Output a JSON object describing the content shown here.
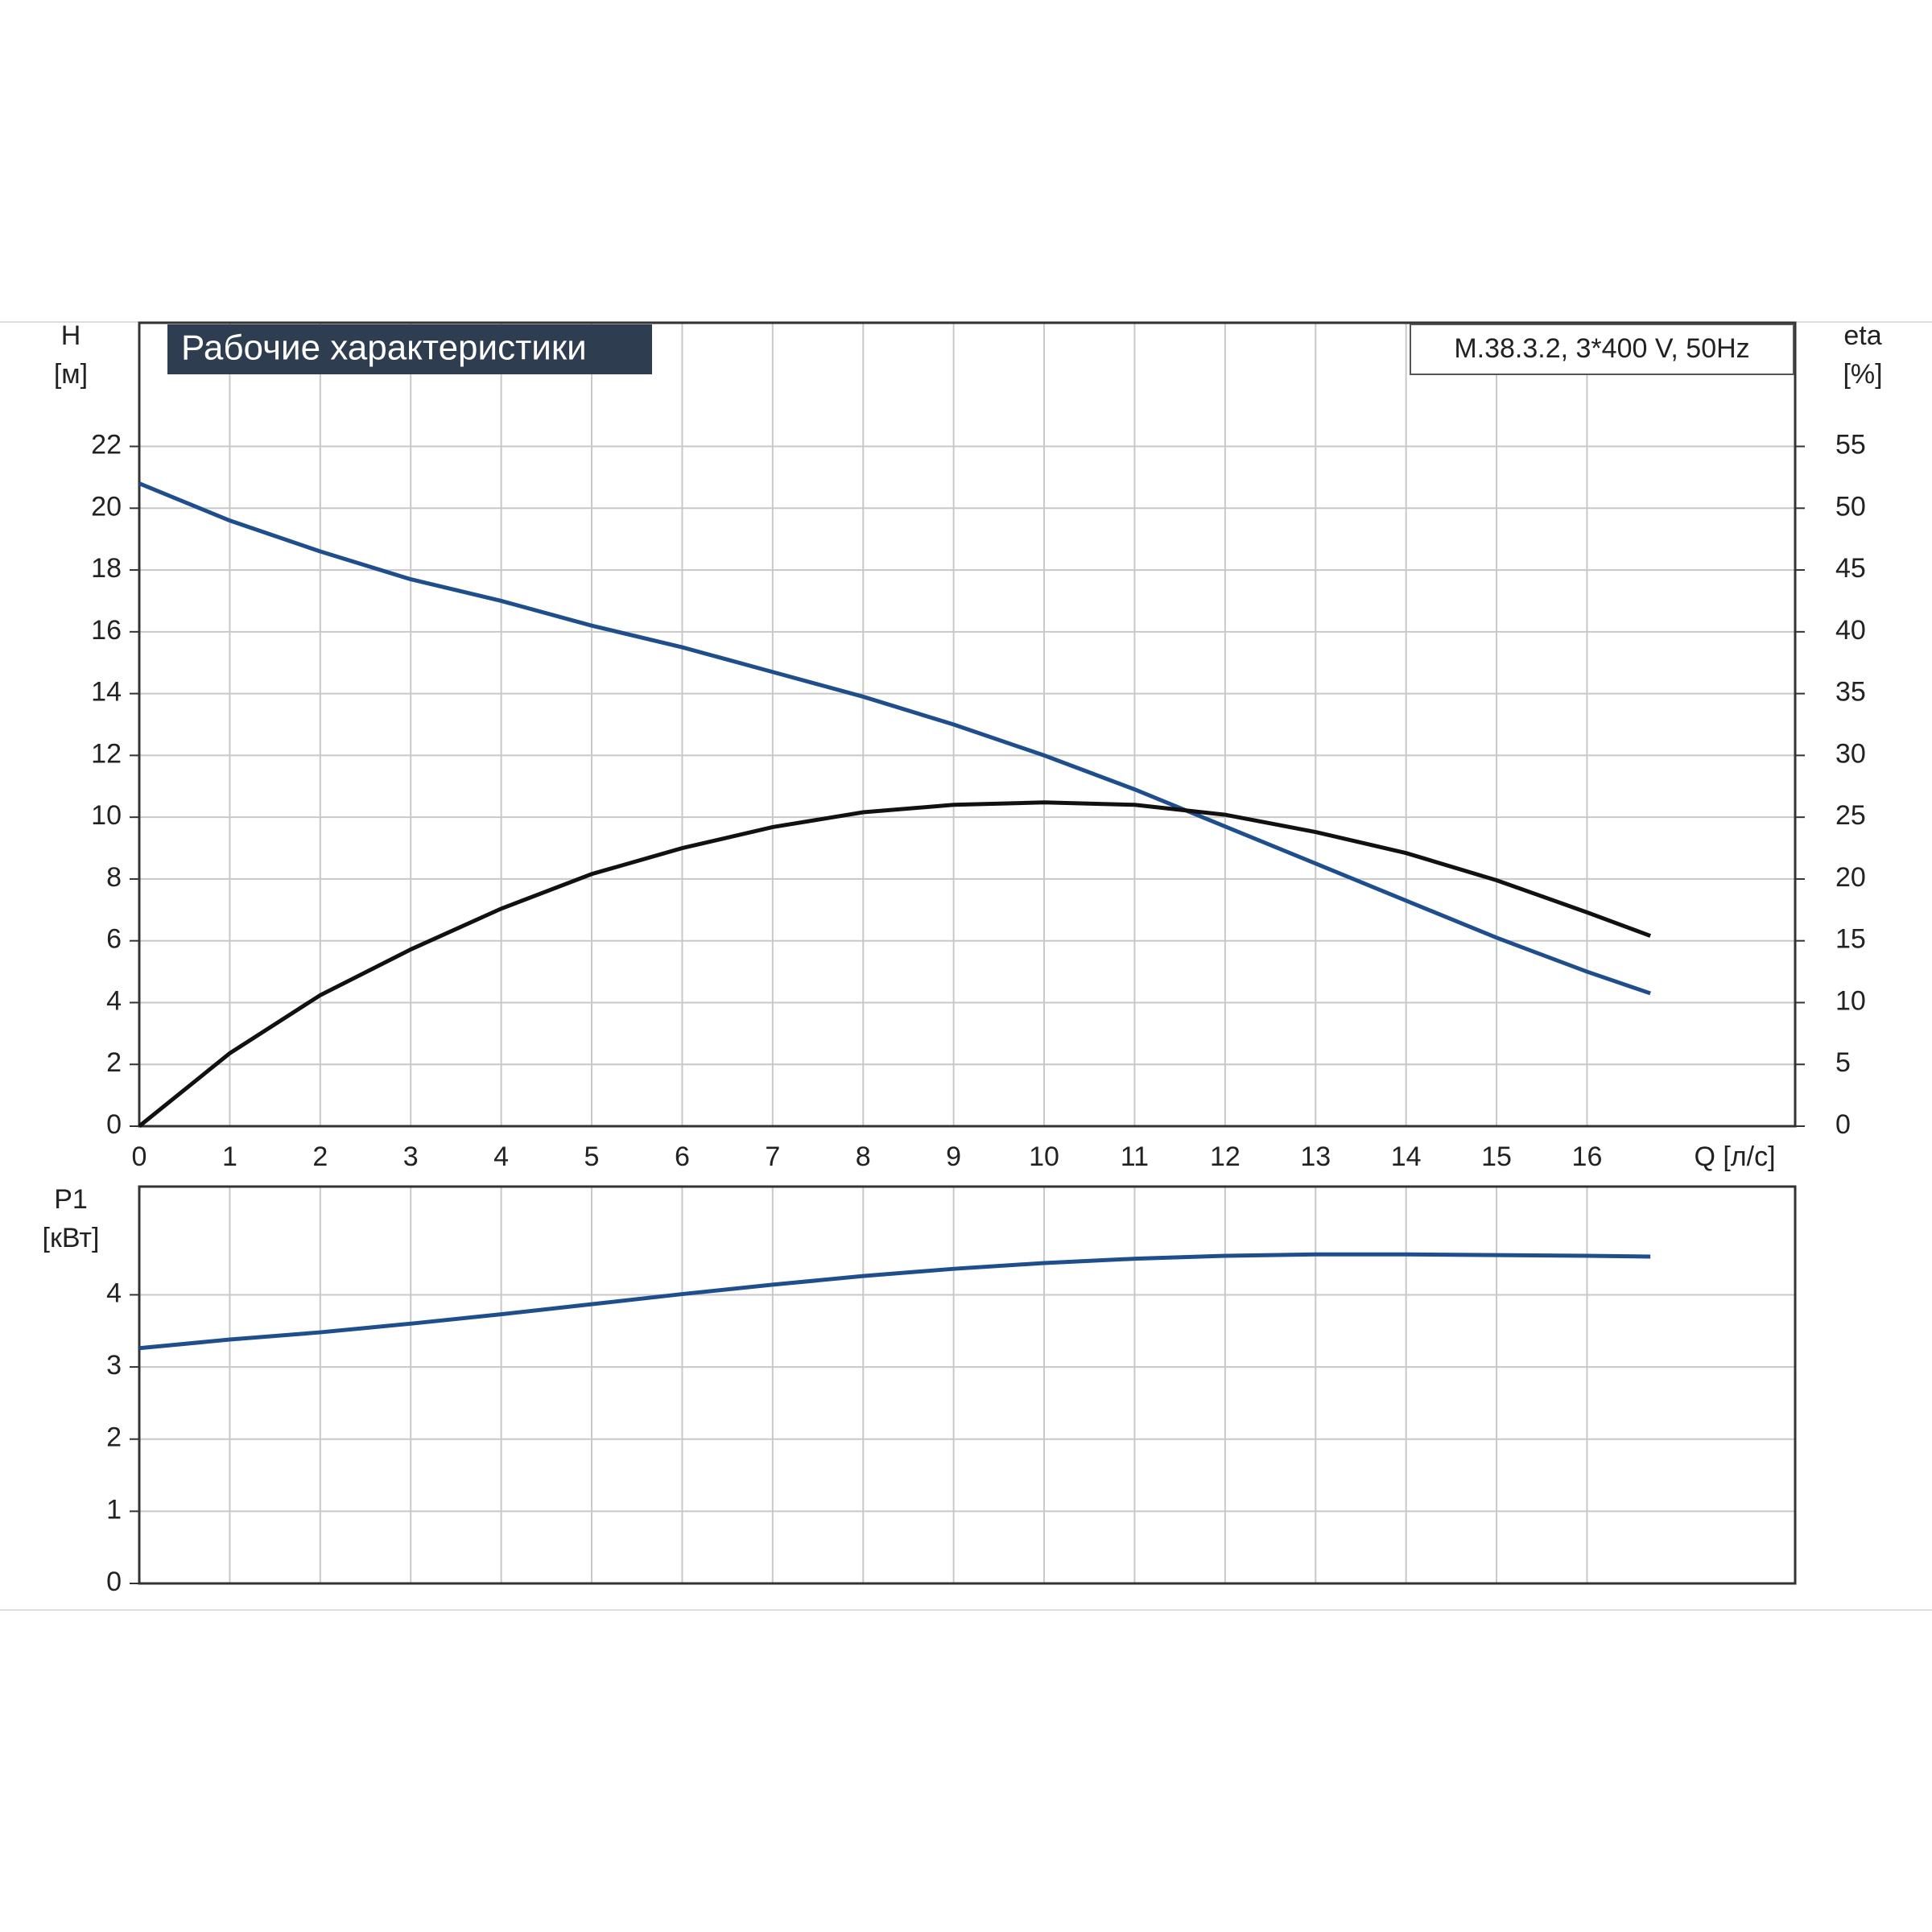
{
  "chart_data": [
    {
      "type": "line",
      "title": "Рабочие характеристики",
      "annotation": "M.38.3.2, 3*400 V, 50Hz",
      "ylabel": "H",
      "yunit": "[м]",
      "y2label": "eta",
      "y2unit": "[%]",
      "xlabel": "Q [л/с]",
      "x": [
        0,
        1,
        2,
        3,
        4,
        5,
        6,
        7,
        8,
        9,
        10,
        11,
        12,
        13,
        14,
        15,
        16,
        16.7
      ],
      "xlim": [
        0,
        18.3
      ],
      "xticks": [
        0,
        1,
        2,
        3,
        4,
        5,
        6,
        7,
        8,
        9,
        10,
        11,
        12,
        13,
        14,
        15,
        16
      ],
      "ylim": [
        0,
        26
      ],
      "yticks": [
        0,
        2,
        4,
        6,
        8,
        10,
        12,
        14,
        16,
        18,
        20,
        22
      ],
      "y2lim": [
        0,
        65
      ],
      "y2ticks": [
        0,
        5,
        10,
        15,
        20,
        25,
        30,
        35,
        40,
        45,
        50,
        55
      ],
      "grid": true,
      "series": [
        {
          "name": "H",
          "color": "#1f4e8c",
          "values": [
            20.8,
            19.6,
            18.6,
            17.7,
            17.0,
            16.2,
            15.5,
            14.7,
            13.9,
            13.0,
            12.0,
            10.9,
            9.7,
            8.5,
            7.3,
            6.1,
            5.0,
            4.3
          ]
        },
        {
          "name": "eta",
          "color": "#111111",
          "axis": "y2",
          "values": [
            0,
            5.9,
            10.6,
            14.3,
            17.6,
            20.4,
            22.5,
            24.2,
            25.4,
            26.0,
            26.2,
            26.0,
            25.2,
            23.8,
            22.1,
            19.9,
            17.3,
            15.4
          ]
        }
      ]
    },
    {
      "type": "line",
      "ylabel": "P1",
      "yunit": "[кВт]",
      "x": [
        0,
        1,
        2,
        3,
        4,
        5,
        6,
        7,
        8,
        9,
        10,
        11,
        12,
        13,
        14,
        15,
        16,
        16.7
      ],
      "xlim": [
        0,
        18.3
      ],
      "ylim": [
        0,
        5.5
      ],
      "yticks": [
        0,
        1,
        2,
        3,
        4
      ],
      "grid": true,
      "series": [
        {
          "name": "P1",
          "color": "#1f4e8c",
          "values": [
            3.26,
            3.38,
            3.48,
            3.6,
            3.73,
            3.87,
            4.01,
            4.14,
            4.26,
            4.36,
            4.44,
            4.5,
            4.54,
            4.56,
            4.56,
            4.55,
            4.54,
            4.53
          ]
        }
      ]
    }
  ]
}
